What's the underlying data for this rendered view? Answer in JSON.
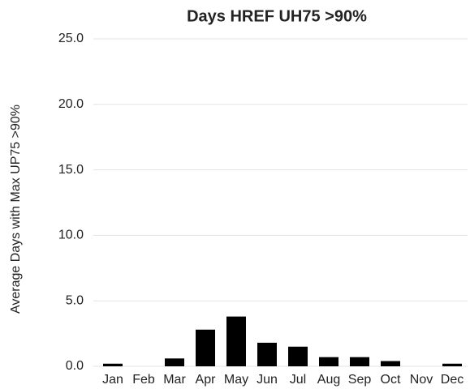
{
  "chart_data": {
    "type": "bar",
    "title": "Days HREF UH75 >90%",
    "y_label": "Average Days with Max UP75 >90%",
    "categories": [
      "Jan",
      "Feb",
      "Mar",
      "Apr",
      "May",
      "Jun",
      "Jul",
      "Aug",
      "Sep",
      "Oct",
      "Nov",
      "Dec"
    ],
    "values": [
      0.2,
      0,
      0.6,
      2.8,
      3.8,
      1.8,
      1.5,
      0.7,
      0.7,
      0.4,
      0,
      0.2
    ],
    "color": "#000000",
    "ylim": [
      0,
      25
    ],
    "yticks": [
      {
        "value": 0,
        "label": "0.0"
      },
      {
        "value": 5,
        "label": "5.0"
      },
      {
        "value": 10,
        "label": "10.0"
      },
      {
        "value": 15,
        "label": "15.0"
      },
      {
        "value": 20,
        "label": "20.0"
      },
      {
        "value": 25,
        "label": "25.0"
      }
    ],
    "grid": true
  }
}
